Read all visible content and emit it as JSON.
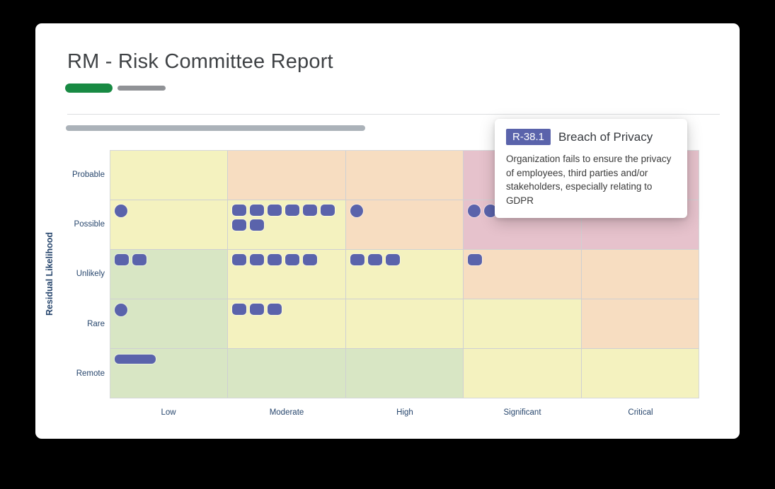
{
  "page": {
    "background": "#000000",
    "card_background": "#ffffff"
  },
  "header": {
    "title": "RM - Risk Committee Report",
    "active_pill_color": "#188a43",
    "inactive_pill_color": "#909296",
    "skeleton_bar_color": "#abb2b9"
  },
  "tooltip": {
    "risk_code": "R-38.1",
    "risk_title": "Breach of Privacy",
    "description": "Organization fails to ensure the privacy of employees, third parties and/or stakeholders, especially relating to GDPR",
    "badge_color": "#5a63ab"
  },
  "chart_data": {
    "type": "heatmap",
    "title": "Residual risk matrix",
    "ylabel": "Residual Likelihood",
    "xlabel": "",
    "rows": [
      "Probable",
      "Possible",
      "Unlikely",
      "Rare",
      "Remote"
    ],
    "columns": [
      "Low",
      "Moderate",
      "High",
      "Significant",
      "Critical"
    ],
    "severity_palette": {
      "green": "#d8e6c4",
      "yellow": "#f4f2bf",
      "orange": "#f7ddc1",
      "red": "#e6c2cc"
    },
    "cell_severity": [
      [
        "yellow",
        "orange",
        "orange",
        "red",
        "red"
      ],
      [
        "yellow",
        "yellow",
        "orange",
        "red",
        "red"
      ],
      [
        "green",
        "yellow",
        "yellow",
        "orange",
        "orange"
      ],
      [
        "green",
        "yellow",
        "yellow",
        "yellow",
        "orange"
      ],
      [
        "green",
        "green",
        "green",
        "yellow",
        "yellow"
      ]
    ],
    "marker_color": "#5a63ab",
    "grid_line_color": "#cfd0d2",
    "markers": [
      {
        "likelihood": "Possible",
        "impact": "Low",
        "count": 1,
        "shapes": [
          "circle"
        ]
      },
      {
        "likelihood": "Possible",
        "impact": "Moderate",
        "count": 8,
        "shapes": [
          "square",
          "square",
          "square",
          "square",
          "square",
          "square",
          "square",
          "square"
        ]
      },
      {
        "likelihood": "Possible",
        "impact": "High",
        "count": 1,
        "shapes": [
          "circle"
        ]
      },
      {
        "likelihood": "Possible",
        "impact": "Significant",
        "count": 2,
        "shapes": [
          "circle",
          "circle"
        ]
      },
      {
        "likelihood": "Unlikely",
        "impact": "Low",
        "count": 2,
        "shapes": [
          "square",
          "square"
        ]
      },
      {
        "likelihood": "Unlikely",
        "impact": "Moderate",
        "count": 5,
        "shapes": [
          "square",
          "square",
          "square",
          "square",
          "square"
        ]
      },
      {
        "likelihood": "Unlikely",
        "impact": "High",
        "count": 3,
        "shapes": [
          "square",
          "square",
          "square"
        ]
      },
      {
        "likelihood": "Unlikely",
        "impact": "Significant",
        "count": 1,
        "shapes": [
          "square"
        ]
      },
      {
        "likelihood": "Rare",
        "impact": "Low",
        "count": 1,
        "shapes": [
          "circle"
        ]
      },
      {
        "likelihood": "Rare",
        "impact": "Moderate",
        "count": 3,
        "shapes": [
          "square",
          "square",
          "square"
        ]
      },
      {
        "likelihood": "Remote",
        "impact": "Low",
        "count": 1,
        "shapes": [
          "bar"
        ]
      }
    ],
    "legend_position": "none",
    "grid": true
  }
}
